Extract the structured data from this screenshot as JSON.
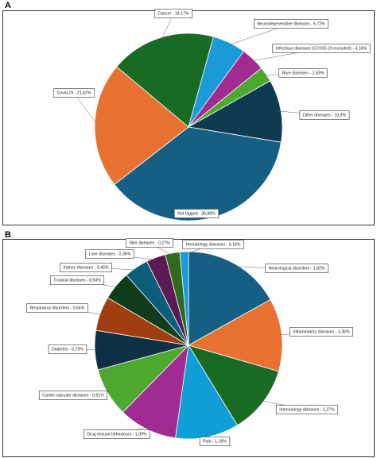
{
  "chart_data": [
    {
      "type": "pie",
      "label": "A",
      "categories": [
        "Cancer",
        "Neurodegenerative diseases",
        "Infectious diseases (COVID-19 excluded)",
        "Rare diseases",
        "Other diseases",
        "Not tagged",
        "Covid-19"
      ],
      "values": [
        18.17,
        5.72,
        4.16,
        2.63,
        10.8,
        36.88,
        21.62
      ],
      "value_labels": [
        "Cancer - 18,17%",
        "Neurodegenerative diseases - 5,72%",
        "Infectious diseases (COVID-19 excluded) - 4,16%",
        "Rare diseases - 2,63%",
        "Other diseases - 10,8%",
        "Not tagged - 36,88%",
        "Covid-19 - 21,62%"
      ],
      "colors": [
        "#196b24",
        "#1a9ad6",
        "#a02b93",
        "#4ea72e",
        "#0e3a52",
        "#156082",
        "#e97132"
      ]
    },
    {
      "type": "pie",
      "label": "B",
      "categories": [
        "Neurological disorders",
        "Inflammatory diseases",
        "Immunology diseases",
        "Pain",
        "Drug misuse behaviours",
        "Cardio-vascular diseases",
        "Diabetes",
        "Respiratory disorders",
        "Tropical diseases",
        "Kidney diseases",
        "Liver diseases",
        "Skin diseases",
        "Hematology diseases"
      ],
      "values": [
        1.82,
        1.36,
        1.27,
        1.18,
        1.09,
        0.91,
        0.73,
        0.64,
        0.54,
        0.45,
        0.36,
        0.27,
        0.16
      ],
      "value_labels": [
        "Neurological disorders - 1,82%",
        "Inflammatory diseases - 1,36%",
        "Immunology diseases - 1,27%",
        "Pain - 1,18%",
        "Drug misuse behaviours - 1,09%",
        "Cardio-vascular diseases - 0,91%",
        "Diabetes - 0,73%",
        "Respiratory disorders - 0,64%",
        "Tropical diseases - 0,54%",
        "Kidney diseases - 0,45%",
        "Liver diseases - 0,36%",
        "Skin diseases - 0,27%",
        "Hematology diseases - 0,16%"
      ],
      "colors": [
        "#156082",
        "#e97132",
        "#196b24",
        "#0f9ed5",
        "#a02b93",
        "#4ea72e",
        "#0e2f44",
        "#9f3f0f",
        "#0f3d19",
        "#0b5e7a",
        "#5c1a55",
        "#2f6b1f",
        "#1a9ad6"
      ]
    }
  ]
}
